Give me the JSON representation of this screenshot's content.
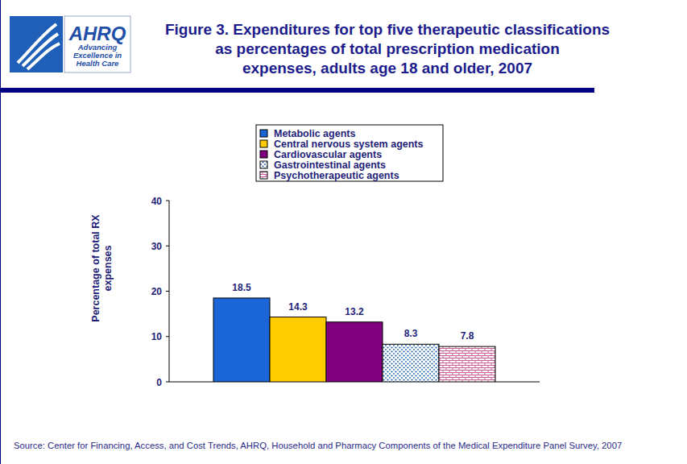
{
  "header": {
    "logo": "AHRQ",
    "tagline": "Advancing\nExcellence in\nHealth Care"
  },
  "chart_data": {
    "type": "bar",
    "title": "Figure 3. Expenditures for top five therapeutic classifications\nas percentages of total prescription medication\nexpenses, adults age 18 and older, 2007",
    "y_label": "Percentage of total RX\nexpenses",
    "source": "Source: Center for Financing, Access, and Cost Trends, AHRQ, Household and Pharmacy Components of the Medical Expenditure Panel Survey, 2007",
    "categories": [
      null
    ],
    "series": [
      {
        "name": "Metabolic agents",
        "color": "#1a66d6",
        "values": [
          18.5
        ]
      },
      {
        "name": "Central nervous system agents",
        "color": "#ffcc00",
        "values": [
          14.3
        ]
      },
      {
        "name": "Cardiovascular agents",
        "color": "#800080",
        "values": [
          13.2
        ]
      },
      {
        "name": "Gastrointestinal agents",
        "color": "#1f5fa8",
        "values": [
          8.3
        ]
      },
      {
        "name": "Psychotherapeutic agents",
        "color": "#cc5f99",
        "values": [
          7.8
        ]
      }
    ],
    "ylim": [
      0,
      40
    ],
    "yticks": [
      0,
      10,
      20,
      30,
      40
    ],
    "grid": false,
    "legend": "top",
    "data_labels": true
  }
}
